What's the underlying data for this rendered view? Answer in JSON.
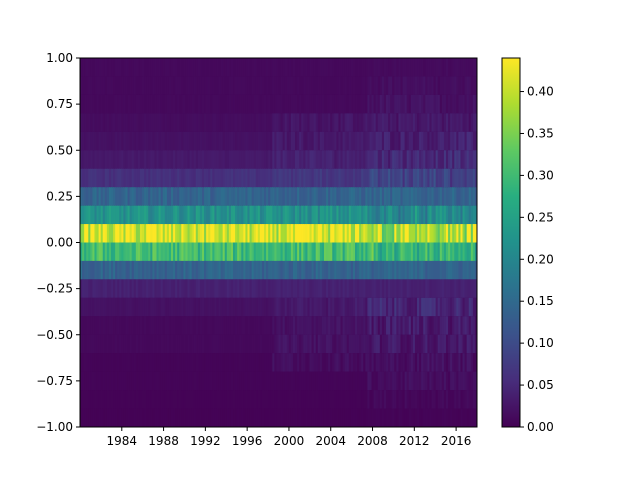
{
  "chart_data": {
    "type": "heatmap",
    "title": "",
    "xlabel": "",
    "ylabel": "",
    "x_range": [
      1980,
      2018
    ],
    "y_range": [
      -1.0,
      1.0
    ],
    "x_ticks": [
      "1984",
      "1988",
      "1992",
      "1996",
      "2000",
      "2004",
      "2008",
      "2012",
      "2016"
    ],
    "y_ticks": [
      "1.00",
      "0.75",
      "0.50",
      "0.25",
      "0.00",
      "−0.25",
      "−0.50",
      "−0.75",
      "−1.00"
    ],
    "colorbar": {
      "colormap": "viridis",
      "range": [
        0.0,
        0.44
      ],
      "ticks": [
        "0.00",
        "0.05",
        "0.10",
        "0.15",
        "0.20",
        "0.25",
        "0.30",
        "0.35",
        "0.40"
      ]
    },
    "bins": [
      {
        "y": [
          0.9,
          1.0
        ],
        "value": 0.01
      },
      {
        "y": [
          0.8,
          0.9
        ],
        "value": 0.01
      },
      {
        "y": [
          0.7,
          0.8
        ],
        "value": 0.01
      },
      {
        "y": [
          0.6,
          0.7
        ],
        "value": 0.015
      },
      {
        "y": [
          0.5,
          0.6
        ],
        "value": 0.02
      },
      {
        "y": [
          0.4,
          0.5
        ],
        "value": 0.03
      },
      {
        "y": [
          0.3,
          0.4
        ],
        "value": 0.06
      },
      {
        "y": [
          0.2,
          0.3
        ],
        "value": 0.14
      },
      {
        "y": [
          0.1,
          0.2
        ],
        "value": 0.22
      },
      {
        "y": [
          0.0,
          0.1
        ],
        "value": 0.41
      },
      {
        "y": [
          -0.1,
          0.0
        ],
        "value": 0.3
      },
      {
        "y": [
          -0.2,
          -0.1
        ],
        "value": 0.14
      },
      {
        "y": [
          -0.3,
          -0.2
        ],
        "value": 0.04
      },
      {
        "y": [
          -0.4,
          -0.3
        ],
        "value": 0.02
      },
      {
        "y": [
          -0.5,
          -0.4
        ],
        "value": 0.01
      },
      {
        "y": [
          -0.6,
          -0.5
        ],
        "value": 0.01
      },
      {
        "y": [
          -0.7,
          -0.6
        ],
        "value": 0.005
      },
      {
        "y": [
          -0.8,
          -0.7
        ],
        "value": 0.005
      },
      {
        "y": [
          -0.9,
          -0.8
        ],
        "value": 0.003
      },
      {
        "y": [
          -1.0,
          -0.9
        ],
        "value": 0.002
      }
    ]
  }
}
